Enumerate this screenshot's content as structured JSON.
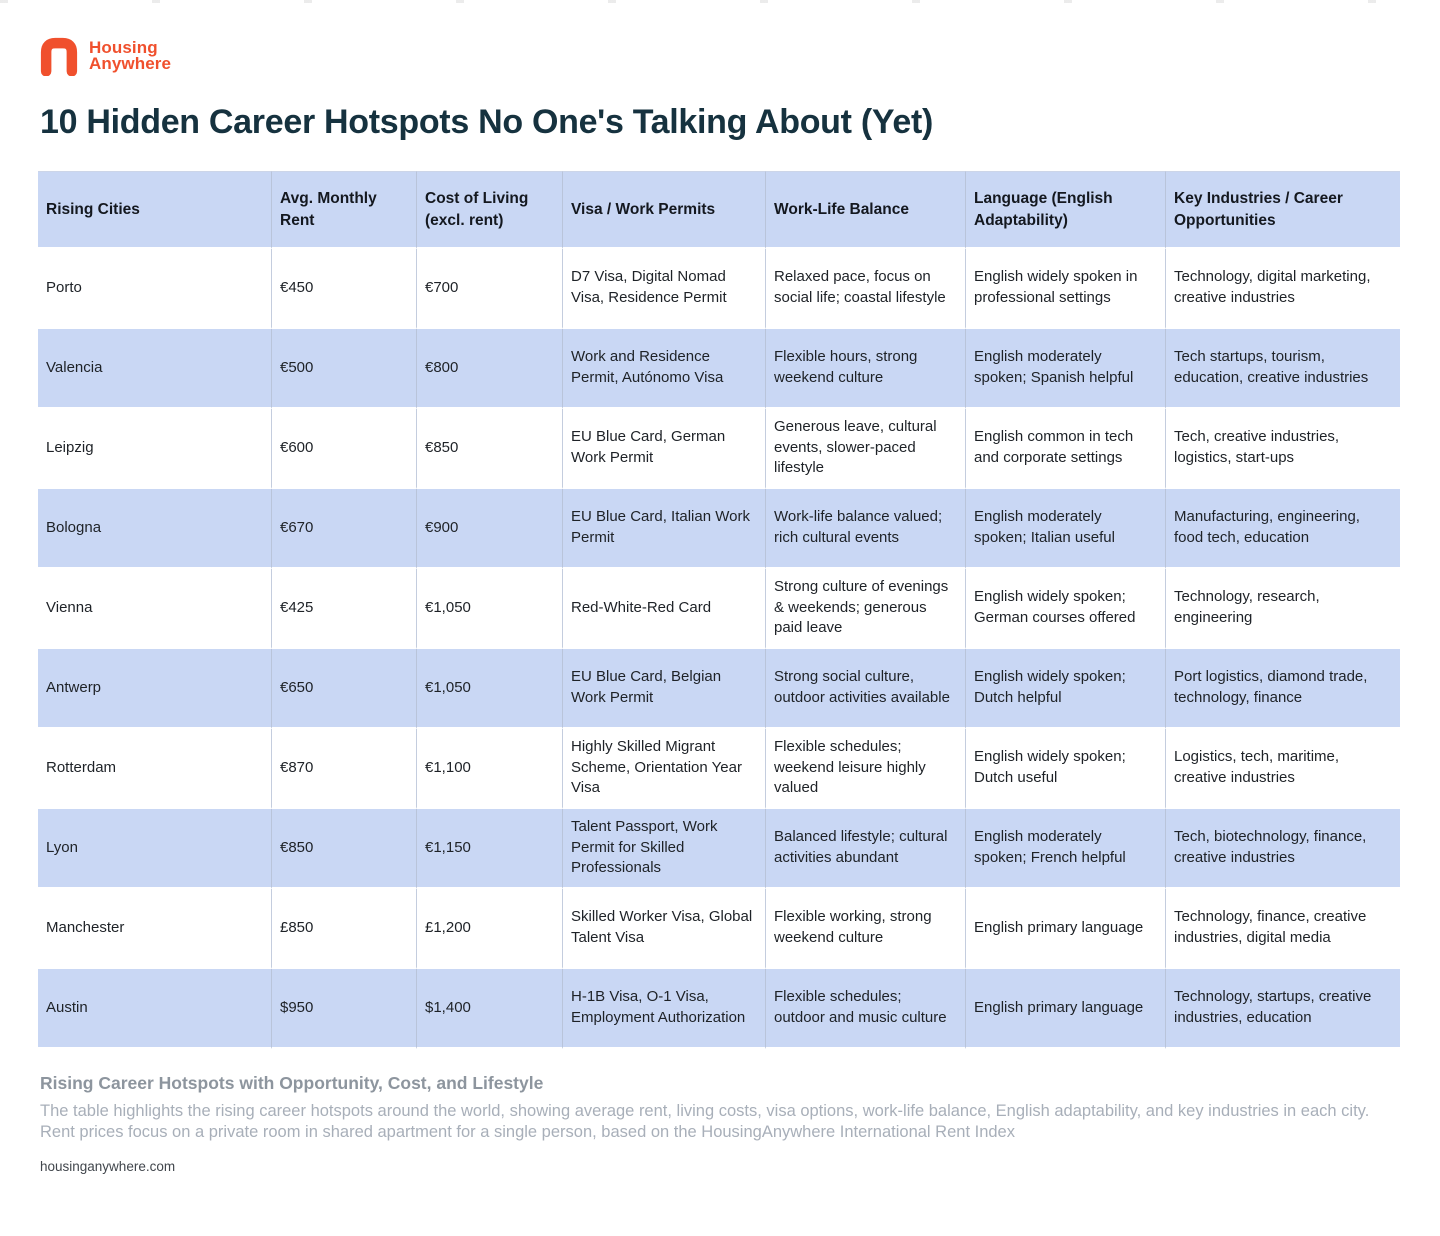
{
  "brand": {
    "name_line1": "Housing",
    "name_line2": "Anywhere"
  },
  "page_title": "10 Hidden Career Hotspots No One's Talking About (Yet)",
  "colors": {
    "brand_orange": "#F0502D",
    "title_navy": "#16323F",
    "table_stripe_blue": "#C9D7F4",
    "body_text": "#1E2227",
    "caption_gray": "#A8AFB9"
  },
  "table": {
    "columns": [
      "Rising Cities",
      "Avg. Monthly Rent",
      "Cost of Living (excl. rent)",
      "Visa / Work Permits",
      "Work-Life Balance",
      "Language (English Adaptability)",
      "Key Industries / Career Opportunities"
    ],
    "rows": [
      [
        "Porto",
        "€450",
        "€700",
        "D7 Visa, Digital Nomad Visa, Residence Permit",
        "Relaxed pace, focus on social life; coastal lifestyle",
        "English widely spoken in professional settings",
        "Technology, digital marketing, creative industries"
      ],
      [
        "Valencia",
        "€500",
        "€800",
        "Work and Residence Permit, Autónomo Visa",
        "Flexible hours, strong weekend culture",
        "English moderately spoken; Spanish helpful",
        "Tech startups, tourism, education, creative industries"
      ],
      [
        "Leipzig",
        "€600",
        "€850",
        "EU Blue Card, German Work Permit",
        "Generous leave, cultural events, slower-paced lifestyle",
        "English common in tech and corporate settings",
        "Tech, creative industries, logistics, start-ups"
      ],
      [
        "Bologna",
        "€670",
        "€900",
        "EU Blue Card, Italian Work Permit",
        "Work-life balance valued; rich cultural events",
        "English moderately spoken; Italian useful",
        "Manufacturing, engineering, food tech, education"
      ],
      [
        "Vienna",
        "€425",
        "€1,050",
        "Red-White-Red Card",
        "Strong culture of evenings & weekends; generous paid leave",
        "English widely spoken; German courses offered",
        "Technology, research, engineering"
      ],
      [
        "Antwerp",
        "€650",
        "€1,050",
        "EU Blue Card, Belgian Work Permit",
        "Strong social culture, outdoor activities available",
        "English widely spoken; Dutch helpful",
        "Port logistics, diamond trade, technology, finance"
      ],
      [
        "Rotterdam",
        "€870",
        "€1,100",
        "Highly Skilled Migrant Scheme, Orientation Year Visa",
        "Flexible schedules; weekend leisure highly valued",
        "English widely spoken; Dutch useful",
        "Logistics, tech, maritime, creative industries"
      ],
      [
        "Lyon",
        "€850",
        "€1,150",
        "Talent Passport, Work Permit for Skilled Professionals",
        "Balanced lifestyle; cultural activities abundant",
        "English moderately spoken; French helpful",
        "Tech, biotechnology, finance, creative industries"
      ],
      [
        "Manchester",
        "£850",
        "£1,200",
        "Skilled Worker Visa, Global Talent Visa",
        "Flexible working, strong weekend culture",
        "English primary language",
        "Technology, finance, creative industries, digital media"
      ],
      [
        "Austin",
        "$950",
        "$1,400",
        "H-1B Visa, O-1 Visa, Employment Authorization",
        "Flexible schedules; outdoor and music culture",
        "English primary language",
        "Technology, startups, creative industries, education"
      ]
    ]
  },
  "footer": {
    "caption_title": "Rising Career Hotspots with Opportunity, Cost, and Lifestyle",
    "caption_body": "The table highlights the rising career hotspots around the world, showing average rent, living costs, visa options, work-life balance, English adaptability, and key industries in each city. Rent prices focus on a private room in shared apartment for a single person, based on the HousingAnywhere International Rent Index",
    "source": "housinganywhere.com"
  }
}
